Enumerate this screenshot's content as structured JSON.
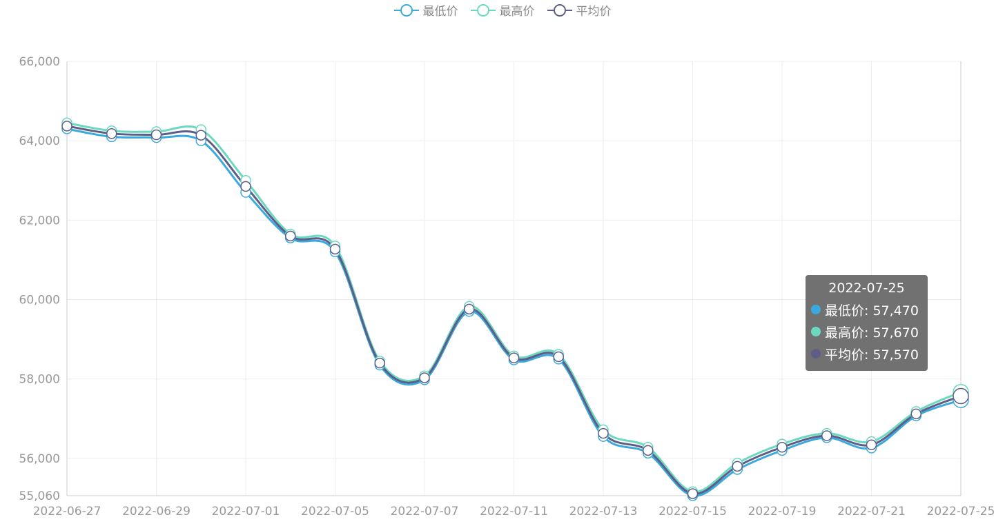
{
  "legend": {
    "items": [
      {
        "label": "最低价",
        "color": "#3ba9de"
      },
      {
        "label": "最高价",
        "color": "#6ad9bf"
      },
      {
        "label": "平均价",
        "color": "#5d5d87"
      }
    ]
  },
  "tooltip": {
    "title": "2022-07-25",
    "rows": [
      {
        "label": "最低价: 57,470",
        "color": "#3ba9de"
      },
      {
        "label": "最高价: 57,670",
        "color": "#6ad9bf"
      },
      {
        "label": "平均价: 57,570",
        "color": "#5d5d87"
      }
    ]
  },
  "chart_data": {
    "type": "line",
    "x": [
      "2022-06-27",
      "2022-06-28",
      "2022-06-29",
      "2022-06-30",
      "2022-07-01",
      "2022-07-04",
      "2022-07-05",
      "2022-07-06",
      "2022-07-07",
      "2022-07-08",
      "2022-07-11",
      "2022-07-12",
      "2022-07-13",
      "2022-07-14",
      "2022-07-15",
      "2022-07-18",
      "2022-07-19",
      "2022-07-20",
      "2022-07-21",
      "2022-07-22",
      "2022-07-25"
    ],
    "x_tick_labels": [
      "2022-06-27",
      "2022-06-29",
      "2022-07-01",
      "2022-07-05",
      "2022-07-07",
      "2022-07-11",
      "2022-07-13",
      "2022-07-15",
      "2022-07-19",
      "2022-07-21",
      "2022-07-25"
    ],
    "series": [
      {
        "name": "最低价",
        "color": "#3ba9de",
        "values": [
          64300,
          64100,
          64080,
          64000,
          62700,
          61550,
          61200,
          58350,
          57980,
          59700,
          58480,
          58500,
          56550,
          56130,
          55060,
          55720,
          56200,
          56520,
          56260,
          57070,
          57470
        ]
      },
      {
        "name": "最高价",
        "color": "#6ad9bf",
        "values": [
          64450,
          64250,
          64230,
          64280,
          63000,
          61650,
          61350,
          58450,
          58080,
          59830,
          58580,
          58620,
          56720,
          56280,
          55160,
          55880,
          56360,
          56630,
          56420,
          57180,
          57670
        ]
      },
      {
        "name": "平均价",
        "color": "#5d5d87",
        "values": [
          64370,
          64180,
          64150,
          64140,
          62850,
          61600,
          61270,
          58400,
          58030,
          59760,
          58530,
          58560,
          56630,
          56200,
          55110,
          55800,
          56280,
          56570,
          56340,
          57120,
          57570
        ]
      }
    ],
    "y_ticks": [
      55060,
      56000,
      58000,
      60000,
      62000,
      64000,
      66000
    ],
    "y_tick_labels": [
      "55,060",
      "56,000",
      "58,000",
      "60,000",
      "62,000",
      "64,000",
      "66,000"
    ],
    "ylim": [
      55060,
      66000
    ],
    "grid": true,
    "legend_position": "top-center",
    "highlighted_index": 20
  }
}
